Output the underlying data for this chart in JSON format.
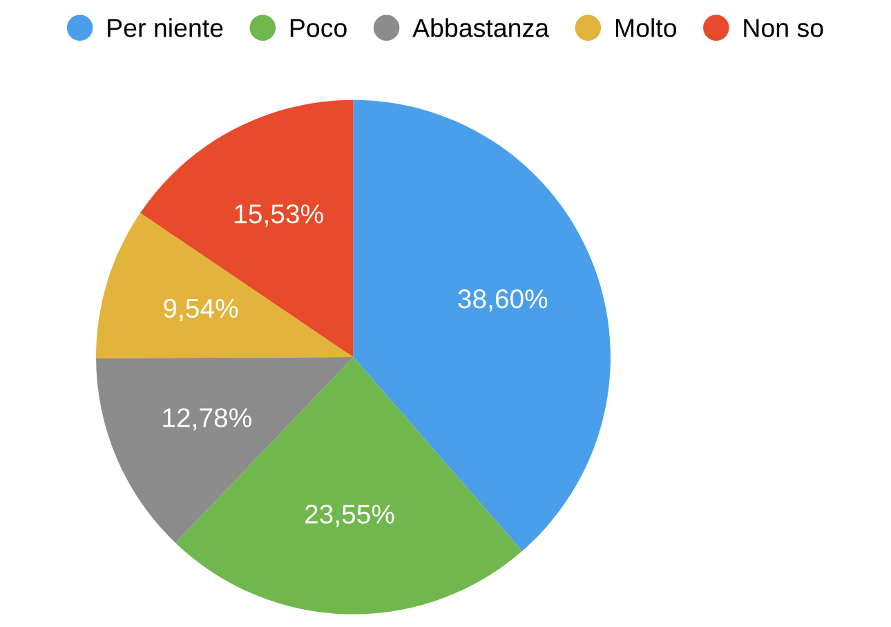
{
  "chart_data": {
    "type": "pie",
    "categories": [
      "Per niente",
      "Poco",
      "Abbastanza",
      "Molto",
      "Non so"
    ],
    "values": [
      38.6,
      23.55,
      12.78,
      9.54,
      15.53
    ],
    "colors": [
      "#4a9fea",
      "#70b84e",
      "#8c8c8c",
      "#e2b43c",
      "#e84a2c"
    ],
    "value_labels": [
      "38,60%",
      "23,55%",
      "12,78%",
      "9,54%",
      "15,53%"
    ],
    "legend": "top"
  }
}
